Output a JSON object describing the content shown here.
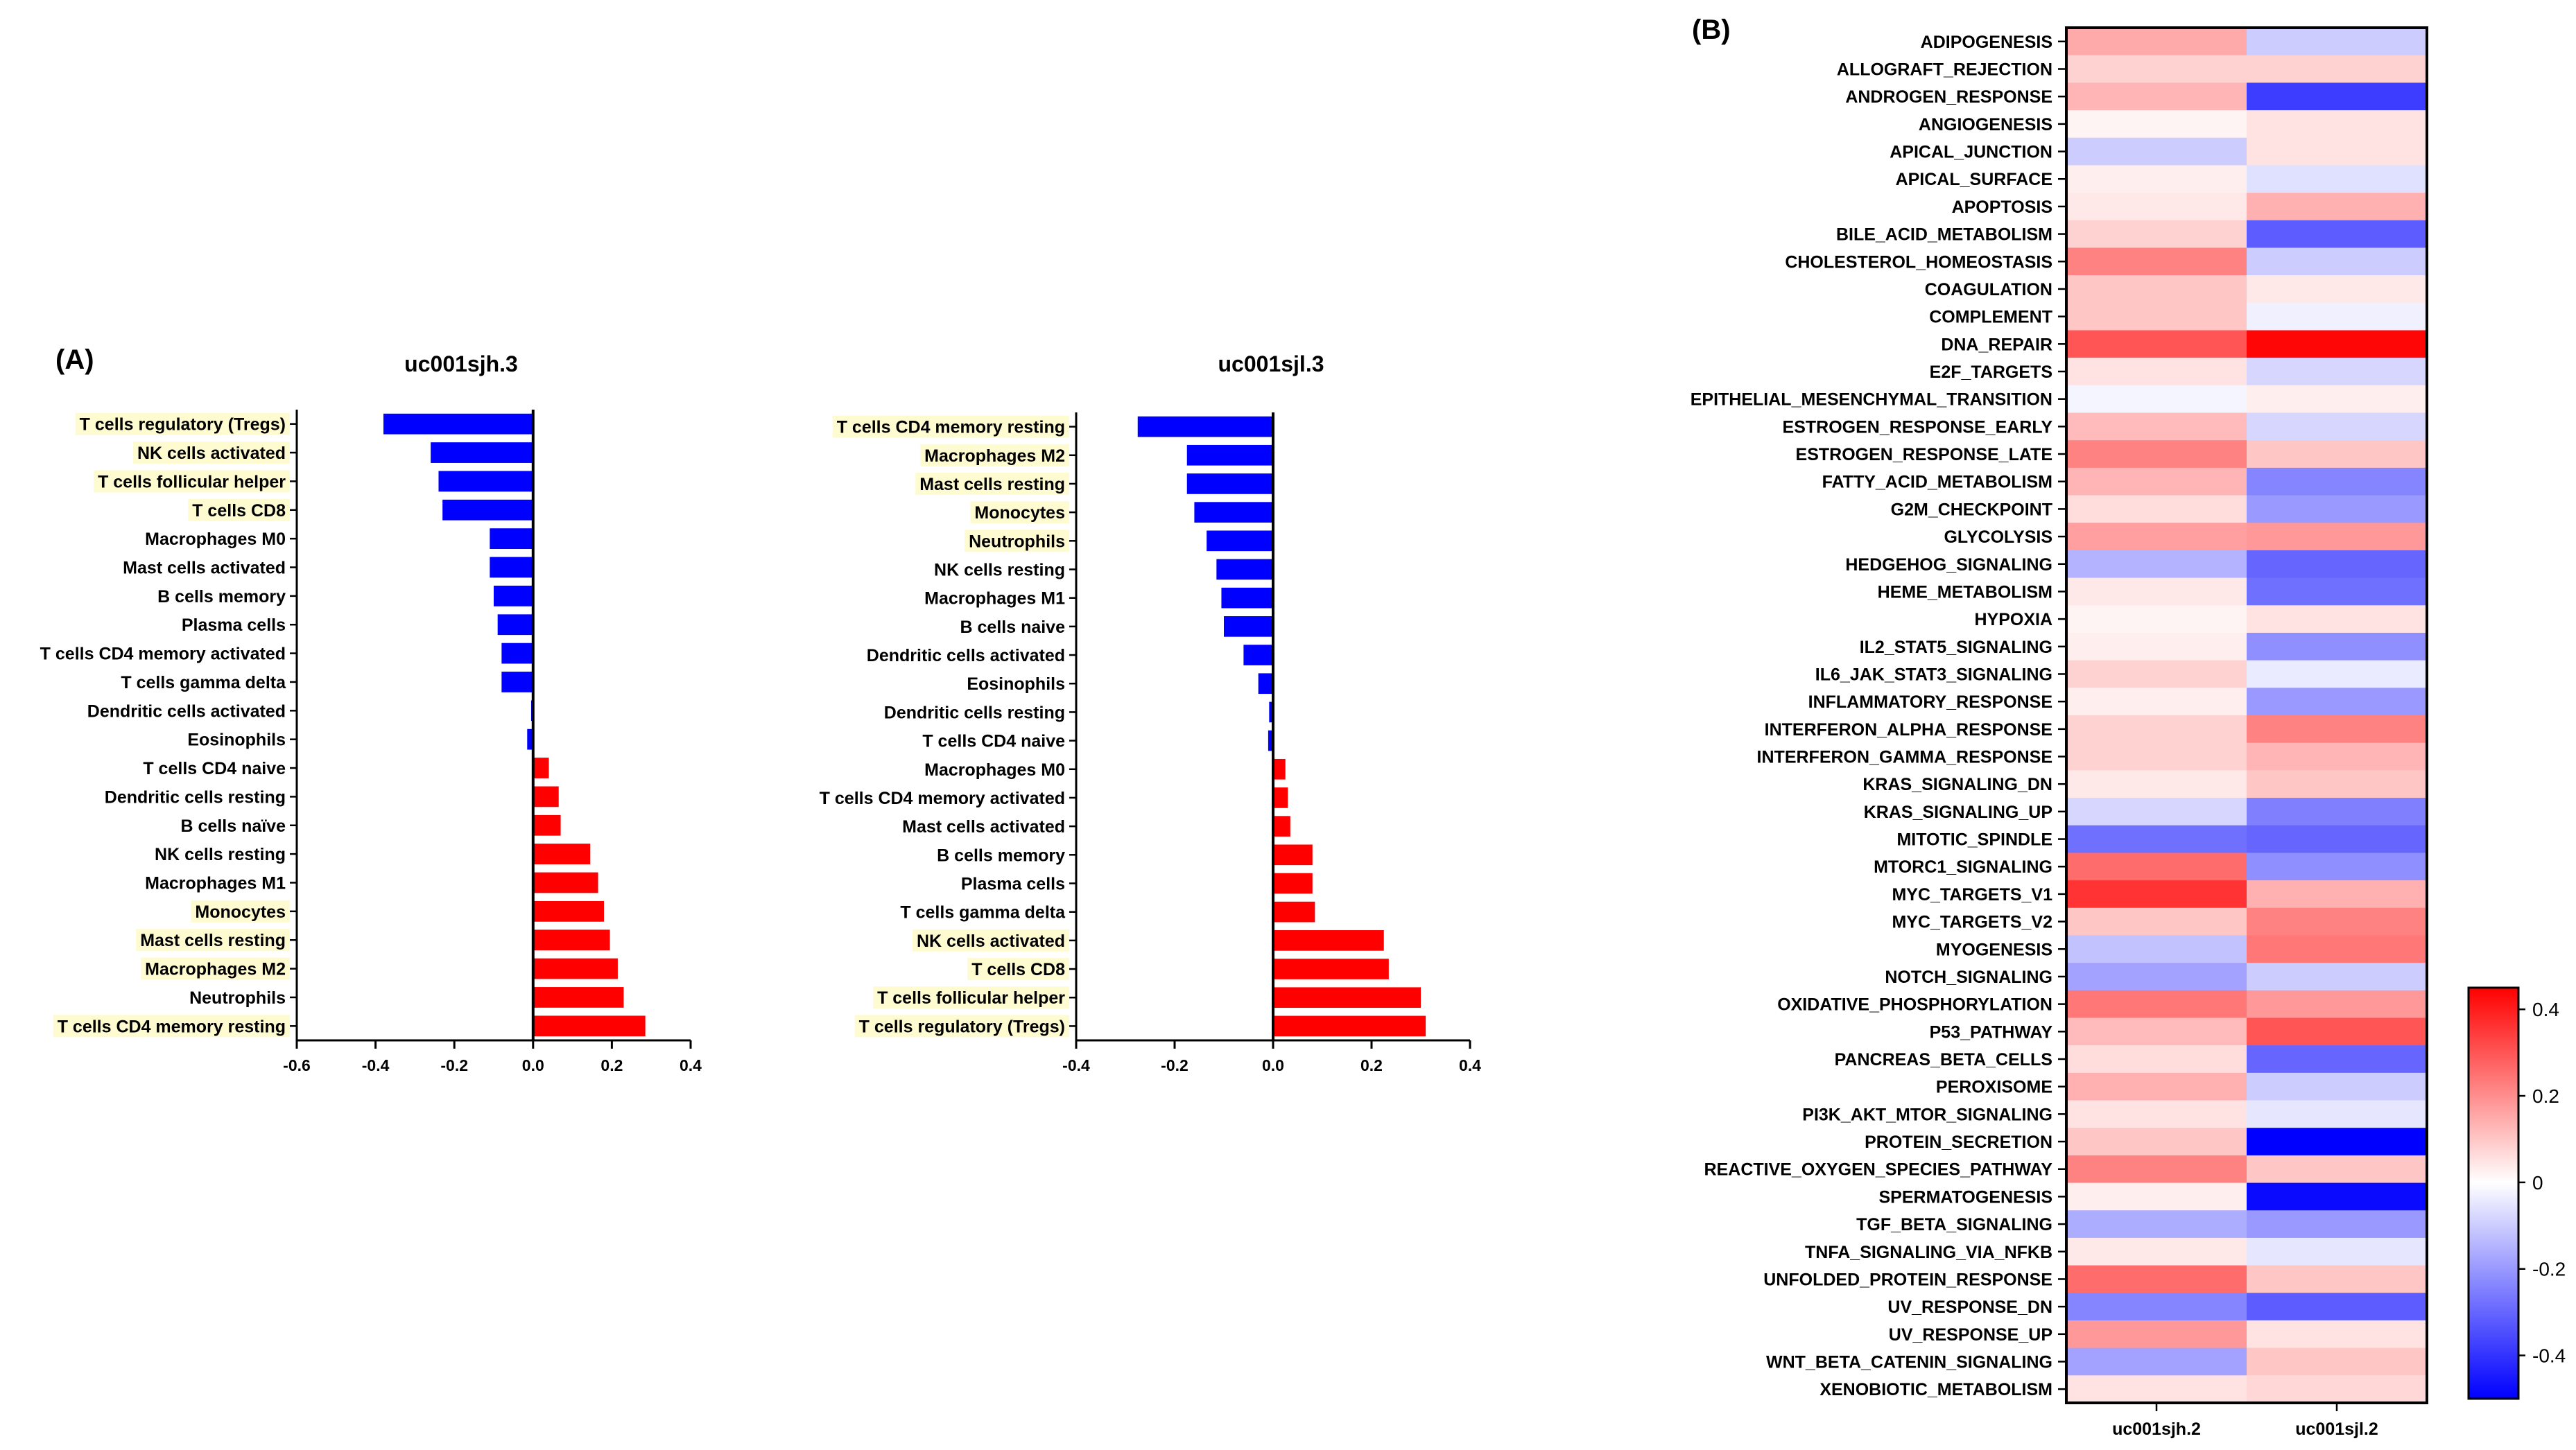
{
  "panel_a_label": "(A)",
  "panel_b_label": "(B)",
  "chart_data": [
    {
      "type": "bar",
      "orientation": "horizontal",
      "title": "uc001sjh.3",
      "xlim": [
        -0.6,
        0.4
      ],
      "xticks": [
        "-0.6",
        "-0.4",
        "-0.2",
        "0.0",
        "0.2",
        "0.4"
      ],
      "tick_values": [
        -0.6,
        -0.4,
        -0.2,
        0.0,
        0.2,
        0.4
      ],
      "categories": [
        "T cells regulatory (Tregs)",
        "NK cells activated",
        "T cells follicular helper",
        "T cells CD8",
        "Macrophages M0",
        "Mast cells activated",
        "B cells memory",
        "Plasma cells",
        "T cells CD4 memory activated",
        "T cells gamma delta",
        "Dendritic cells activated",
        "Eosinophils",
        "T cells CD4 naive",
        "Dendritic cells resting",
        "B cells naïve",
        "NK cells resting",
        "Macrophages M1",
        "Monocytes",
        "Mast cells resting",
        "Macrophages M2",
        "Neutrophils",
        "T cells CD4 memory resting"
      ],
      "values": [
        -0.38,
        -0.26,
        -0.24,
        -0.23,
        -0.11,
        -0.11,
        -0.1,
        -0.09,
        -0.08,
        -0.08,
        -0.005,
        -0.015,
        0.04,
        0.065,
        0.07,
        0.145,
        0.165,
        0.18,
        0.195,
        0.215,
        0.23,
        0.285
      ],
      "highlighted": [
        true,
        true,
        true,
        true,
        false,
        false,
        false,
        false,
        false,
        false,
        false,
        false,
        false,
        false,
        false,
        false,
        false,
        true,
        true,
        true,
        false,
        true
      ]
    },
    {
      "type": "bar",
      "orientation": "horizontal",
      "title": "uc001sjl.3",
      "xlim": [
        -0.4,
        0.4
      ],
      "xticks": [
        "-0.4",
        "-0.2",
        "0.0",
        "0.2",
        "0.4"
      ],
      "tick_values": [
        -0.4,
        -0.2,
        0.0,
        0.2,
        0.4
      ],
      "categories": [
        "T cells CD4 memory resting",
        "Macrophages M2",
        "Mast cells resting",
        "Monocytes",
        "Neutrophils",
        "NK cells resting",
        "Macrophages M1",
        "B cells naive",
        "Dendritic cells activated",
        "Eosinophils",
        "Dendritic cells resting",
        "T cells CD4 naive",
        "Macrophages M0",
        "T cells CD4 memory activated",
        "Mast cells activated",
        "B cells memory",
        "Plasma cells",
        "T cells gamma delta",
        "NK cells activated",
        "T cells CD8",
        "T cells follicular helper",
        "T cells regulatory (Tregs)"
      ],
      "values": [
        -0.275,
        -0.175,
        -0.175,
        -0.16,
        -0.135,
        -0.115,
        -0.105,
        -0.1,
        -0.06,
        -0.03,
        -0.008,
        -0.01,
        0.025,
        0.03,
        0.035,
        0.08,
        0.08,
        0.085,
        0.225,
        0.235,
        0.3,
        0.31
      ],
      "highlighted": [
        true,
        true,
        true,
        true,
        true,
        false,
        false,
        false,
        false,
        false,
        false,
        false,
        false,
        false,
        false,
        false,
        false,
        false,
        true,
        true,
        true,
        true
      ]
    },
    {
      "type": "heatmap",
      "columns": [
        "uc001sjh.2",
        "uc001sjl.2"
      ],
      "rows": [
        "ADIPOGENESIS",
        "ALLOGRAFT_REJECTION",
        "ANDROGEN_RESPONSE",
        "ANGIOGENESIS",
        "APICAL_JUNCTION",
        "APICAL_SURFACE",
        "APOPTOSIS",
        "BILE_ACID_METABOLISM",
        "CHOLESTEROL_HOMEOSTASIS",
        "COAGULATION",
        "COMPLEMENT",
        "DNA_REPAIR",
        "E2F_TARGETS",
        "EPITHELIAL_MESENCHYMAL_TRANSITION",
        "ESTROGEN_RESPONSE_EARLY",
        "ESTROGEN_RESPONSE_LATE",
        "FATTY_ACID_METABOLISM",
        "G2M_CHECKPOINT",
        "GLYCOLYSIS",
        "HEDGEHOG_SIGNALING",
        "HEME_METABOLISM",
        "HYPOXIA",
        "IL2_STAT5_SIGNALING",
        "IL6_JAK_STAT3_SIGNALING",
        "INFLAMMATORY_RESPONSE",
        "INTERFERON_ALPHA_RESPONSE",
        "INTERFERON_GAMMA_RESPONSE",
        "KRAS_SIGNALING_DN",
        "KRAS_SIGNALING_UP",
        "MITOTIC_SPINDLE",
        "MTORC1_SIGNALING",
        "MYC_TARGETS_V1",
        "MYC_TARGETS_V2",
        "MYOGENESIS",
        "NOTCH_SIGNALING",
        "OXIDATIVE_PHOSPHORYLATION",
        "P53_PATHWAY",
        "PANCREAS_BETA_CELLS",
        "PEROXISOME",
        "PI3K_AKT_MTOR_SIGNALING",
        "PROTEIN_SECRETION",
        "REACTIVE_OXYGEN_SPECIES_PATHWAY",
        "SPERMATOGENESIS",
        "TGF_BETA_SIGNALING",
        "TNFA_SIGNALING_VIA_NFKB",
        "UNFOLDED_PROTEIN_RESPONSE",
        "UV_RESPONSE_DN",
        "UV_RESPONSE_UP",
        "WNT_BETA_CATENIN_SIGNALING",
        "XENOBIOTIC_METABOLISM"
      ],
      "values": [
        [
          0.15,
          -0.1
        ],
        [
          0.08,
          0.08
        ],
        [
          0.13,
          -0.38
        ],
        [
          0.02,
          0.05
        ],
        [
          -0.1,
          0.05
        ],
        [
          0.03,
          -0.06
        ],
        [
          0.04,
          0.14
        ],
        [
          0.08,
          -0.32
        ],
        [
          0.22,
          -0.1
        ],
        [
          0.1,
          0.04
        ],
        [
          0.1,
          -0.03
        ],
        [
          0.3,
          0.44
        ],
        [
          0.05,
          -0.08
        ],
        [
          -0.02,
          0.03
        ],
        [
          0.12,
          -0.08
        ],
        [
          0.22,
          0.1
        ],
        [
          0.13,
          -0.24
        ],
        [
          0.06,
          -0.2
        ],
        [
          0.17,
          0.18
        ],
        [
          -0.15,
          -0.3
        ],
        [
          0.04,
          -0.28
        ],
        [
          0.02,
          0.05
        ],
        [
          0.03,
          -0.22
        ],
        [
          0.08,
          -0.04
        ],
        [
          0.03,
          -0.2
        ],
        [
          0.08,
          0.22
        ],
        [
          0.08,
          0.13
        ],
        [
          0.04,
          0.1
        ],
        [
          -0.08,
          -0.25
        ],
        [
          -0.28,
          -0.3
        ],
        [
          0.26,
          -0.22
        ],
        [
          0.36,
          0.14
        ],
        [
          0.1,
          0.22
        ],
        [
          -0.12,
          0.24
        ],
        [
          -0.18,
          -0.1
        ],
        [
          0.24,
          0.18
        ],
        [
          0.12,
          0.3
        ],
        [
          0.06,
          -0.3
        ],
        [
          0.14,
          -0.1
        ],
        [
          0.05,
          -0.05
        ],
        [
          0.1,
          -0.5
        ],
        [
          0.22,
          0.1
        ],
        [
          0.03,
          -0.48
        ],
        [
          -0.16,
          -0.2
        ],
        [
          0.04,
          -0.05
        ],
        [
          0.26,
          0.1
        ],
        [
          -0.24,
          -0.32
        ],
        [
          0.18,
          0.05
        ],
        [
          -0.18,
          0.1
        ],
        [
          0.05,
          0.07
        ]
      ],
      "colorbar": {
        "range": [
          -0.5,
          0.45
        ],
        "ticks": [
          "0.4",
          "0.2",
          "0",
          "-0.2",
          "-0.4"
        ],
        "tick_values": [
          0.4,
          0.2,
          0,
          -0.2,
          -0.4
        ],
        "colors": {
          "negative": "#0000ff",
          "zero": "#ffffff",
          "positive": "#ff0000"
        }
      }
    }
  ],
  "colors": {
    "negative_bar": "#0000ff",
    "positive_bar": "#ff0000",
    "highlight": "#fffbd1"
  }
}
